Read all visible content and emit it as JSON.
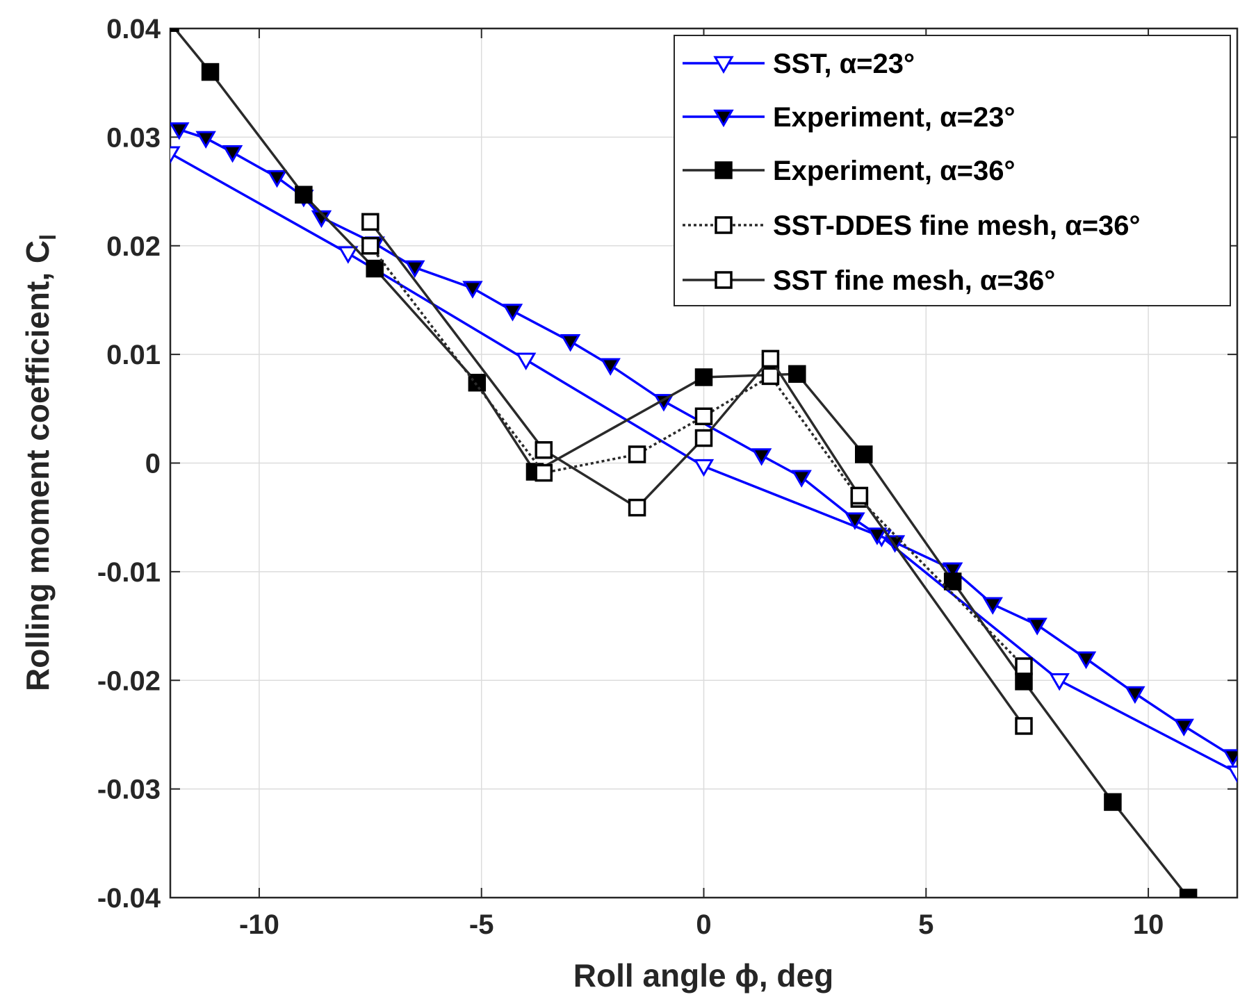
{
  "chart_data": {
    "type": "line",
    "title": "",
    "xlabel": "Roll angle ϕ, deg",
    "ylabel": "Rolling moment coefficient, C",
    "ylabel_subscript": "l",
    "xlim": [
      -12,
      12
    ],
    "ylim": [
      -0.04,
      0.04
    ],
    "xticks": [
      -10,
      -5,
      0,
      5,
      10
    ],
    "xtick_labels": [
      "-10",
      "-5",
      "0",
      "5",
      "10"
    ],
    "yticks": [
      -0.04,
      -0.03,
      -0.02,
      -0.01,
      0,
      0.01,
      0.02,
      0.03,
      0.04
    ],
    "ytick_labels": [
      "-0.04",
      "-0.03",
      "-0.02",
      "-0.01",
      "0",
      "0.01",
      "0.02",
      "0.03",
      "0.04"
    ],
    "grid": true,
    "legend_position": "top-right",
    "series": [
      {
        "name": "SST,  α=23°",
        "color": "#0000ff",
        "marker": "triangle-down-open",
        "linestyle": "solid",
        "x": [
          -12,
          -8,
          -4,
          0,
          4,
          8,
          12
        ],
        "y": [
          0.0285,
          0.0193,
          0.0095,
          -0.0003,
          -0.0068,
          -0.02,
          -0.0285
        ]
      },
      {
        "name": "Experiment, α=23°",
        "color": "#0000ff",
        "marker": "triangle-down-filled",
        "linestyle": "solid",
        "x": [
          -11.8,
          -11.2,
          -10.6,
          -9.6,
          -9.0,
          -8.6,
          -7.4,
          -6.5,
          -5.2,
          -4.3,
          -3.0,
          -2.1,
          -0.9,
          1.3,
          2.2,
          3.4,
          3.9,
          4.3,
          5.6,
          6.5,
          7.5,
          8.6,
          9.7,
          10.8,
          11.9
        ],
        "y": [
          0.0307,
          0.0299,
          0.0286,
          0.0263,
          0.0245,
          0.0226,
          0.0202,
          0.018,
          0.0161,
          0.014,
          0.0112,
          0.009,
          0.0057,
          0.0007,
          -0.0013,
          -0.0052,
          -0.0066,
          -0.0073,
          -0.0098,
          -0.013,
          -0.0149,
          -0.018,
          -0.0212,
          -0.0242,
          -0.027
        ]
      },
      {
        "name": "Experiment, α=36°",
        "color": "#000000",
        "marker": "square-filled",
        "linestyle": "solid",
        "x": [
          -12,
          -11.1,
          -9.0,
          -7.4,
          -5.1,
          -3.8,
          0,
          2.1,
          3.6,
          5.6,
          7.2,
          9.2,
          10.9
        ],
        "y": [
          0.0405,
          0.036,
          0.0247,
          0.0179,
          0.0074,
          -0.0008,
          0.0079,
          0.0082,
          0.0008,
          -0.0109,
          -0.0201,
          -0.0312,
          -0.04
        ]
      },
      {
        "name": "SST-DDES fine mesh, α=36°",
        "color": "#000000",
        "marker": "square-open",
        "linestyle": "dotted",
        "x": [
          -7.5,
          -3.6,
          -1.5,
          0,
          1.5,
          3.5,
          7.2
        ],
        "y": [
          0.02,
          -0.0009,
          0.0008,
          0.0043,
          0.008,
          -0.0033,
          -0.0187
        ]
      },
      {
        "name": "SST fine mesh, α=36°",
        "color": "#000000",
        "marker": "square-open",
        "linestyle": "solid",
        "x": [
          -7.5,
          -3.6,
          -1.5,
          0,
          1.5,
          3.5,
          7.2
        ],
        "y": [
          0.0222,
          0.0012,
          -0.0041,
          0.0023,
          0.0096,
          -0.003,
          -0.0242
        ]
      }
    ]
  }
}
